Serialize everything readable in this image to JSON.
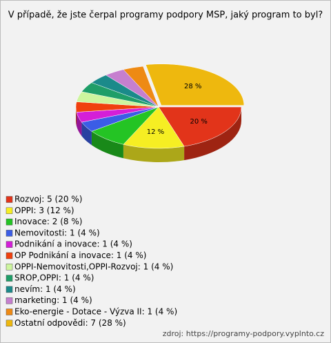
{
  "chart_data": {
    "type": "pie",
    "title": "V případě, že jste čerpal programy podpory MSP, jaký program to byl?",
    "categories": [
      "Rozvoj: 5 (20 %)",
      "OPPI: 3 (12 %)",
      "Inovace: 2 (8 %)",
      "Nemovitosti: 1 (4 %)",
      "Podnikání a inovace: 1 (4 %)",
      "OP Podnikání a inovace: 1 (4 %)",
      "OPPI-Nemovitosti,OPPI-Rozvoj: 1 (4 %)",
      "SROP,OPPI: 1 (4 %)",
      "nevím: 1 (4 %)",
      "marketing: 1 (4 %)",
      "Eko-energie - Dotace - Výzva II: 1 (4 %)",
      "Ostatní odpovědi: 7 (28 %)"
    ],
    "values": [
      20,
      12,
      8,
      4,
      4,
      4,
      4,
      4,
      4,
      4,
      4,
      28
    ],
    "value_labels": [
      "20 %",
      "12 %",
      null,
      null,
      null,
      null,
      null,
      null,
      null,
      null,
      null,
      "28 %"
    ],
    "colors": [
      "#e2341a",
      "#f6ee23",
      "#24c424",
      "#3b5de6",
      "#d41fd8",
      "#f0400e",
      "#cdf59e",
      "#1f9e68",
      "#1b8a8a",
      "#c67fcf",
      "#ee8a14",
      "#eeb80e"
    ],
    "source": "zdroj: https://programy-podpory.vyplnto.cz"
  }
}
